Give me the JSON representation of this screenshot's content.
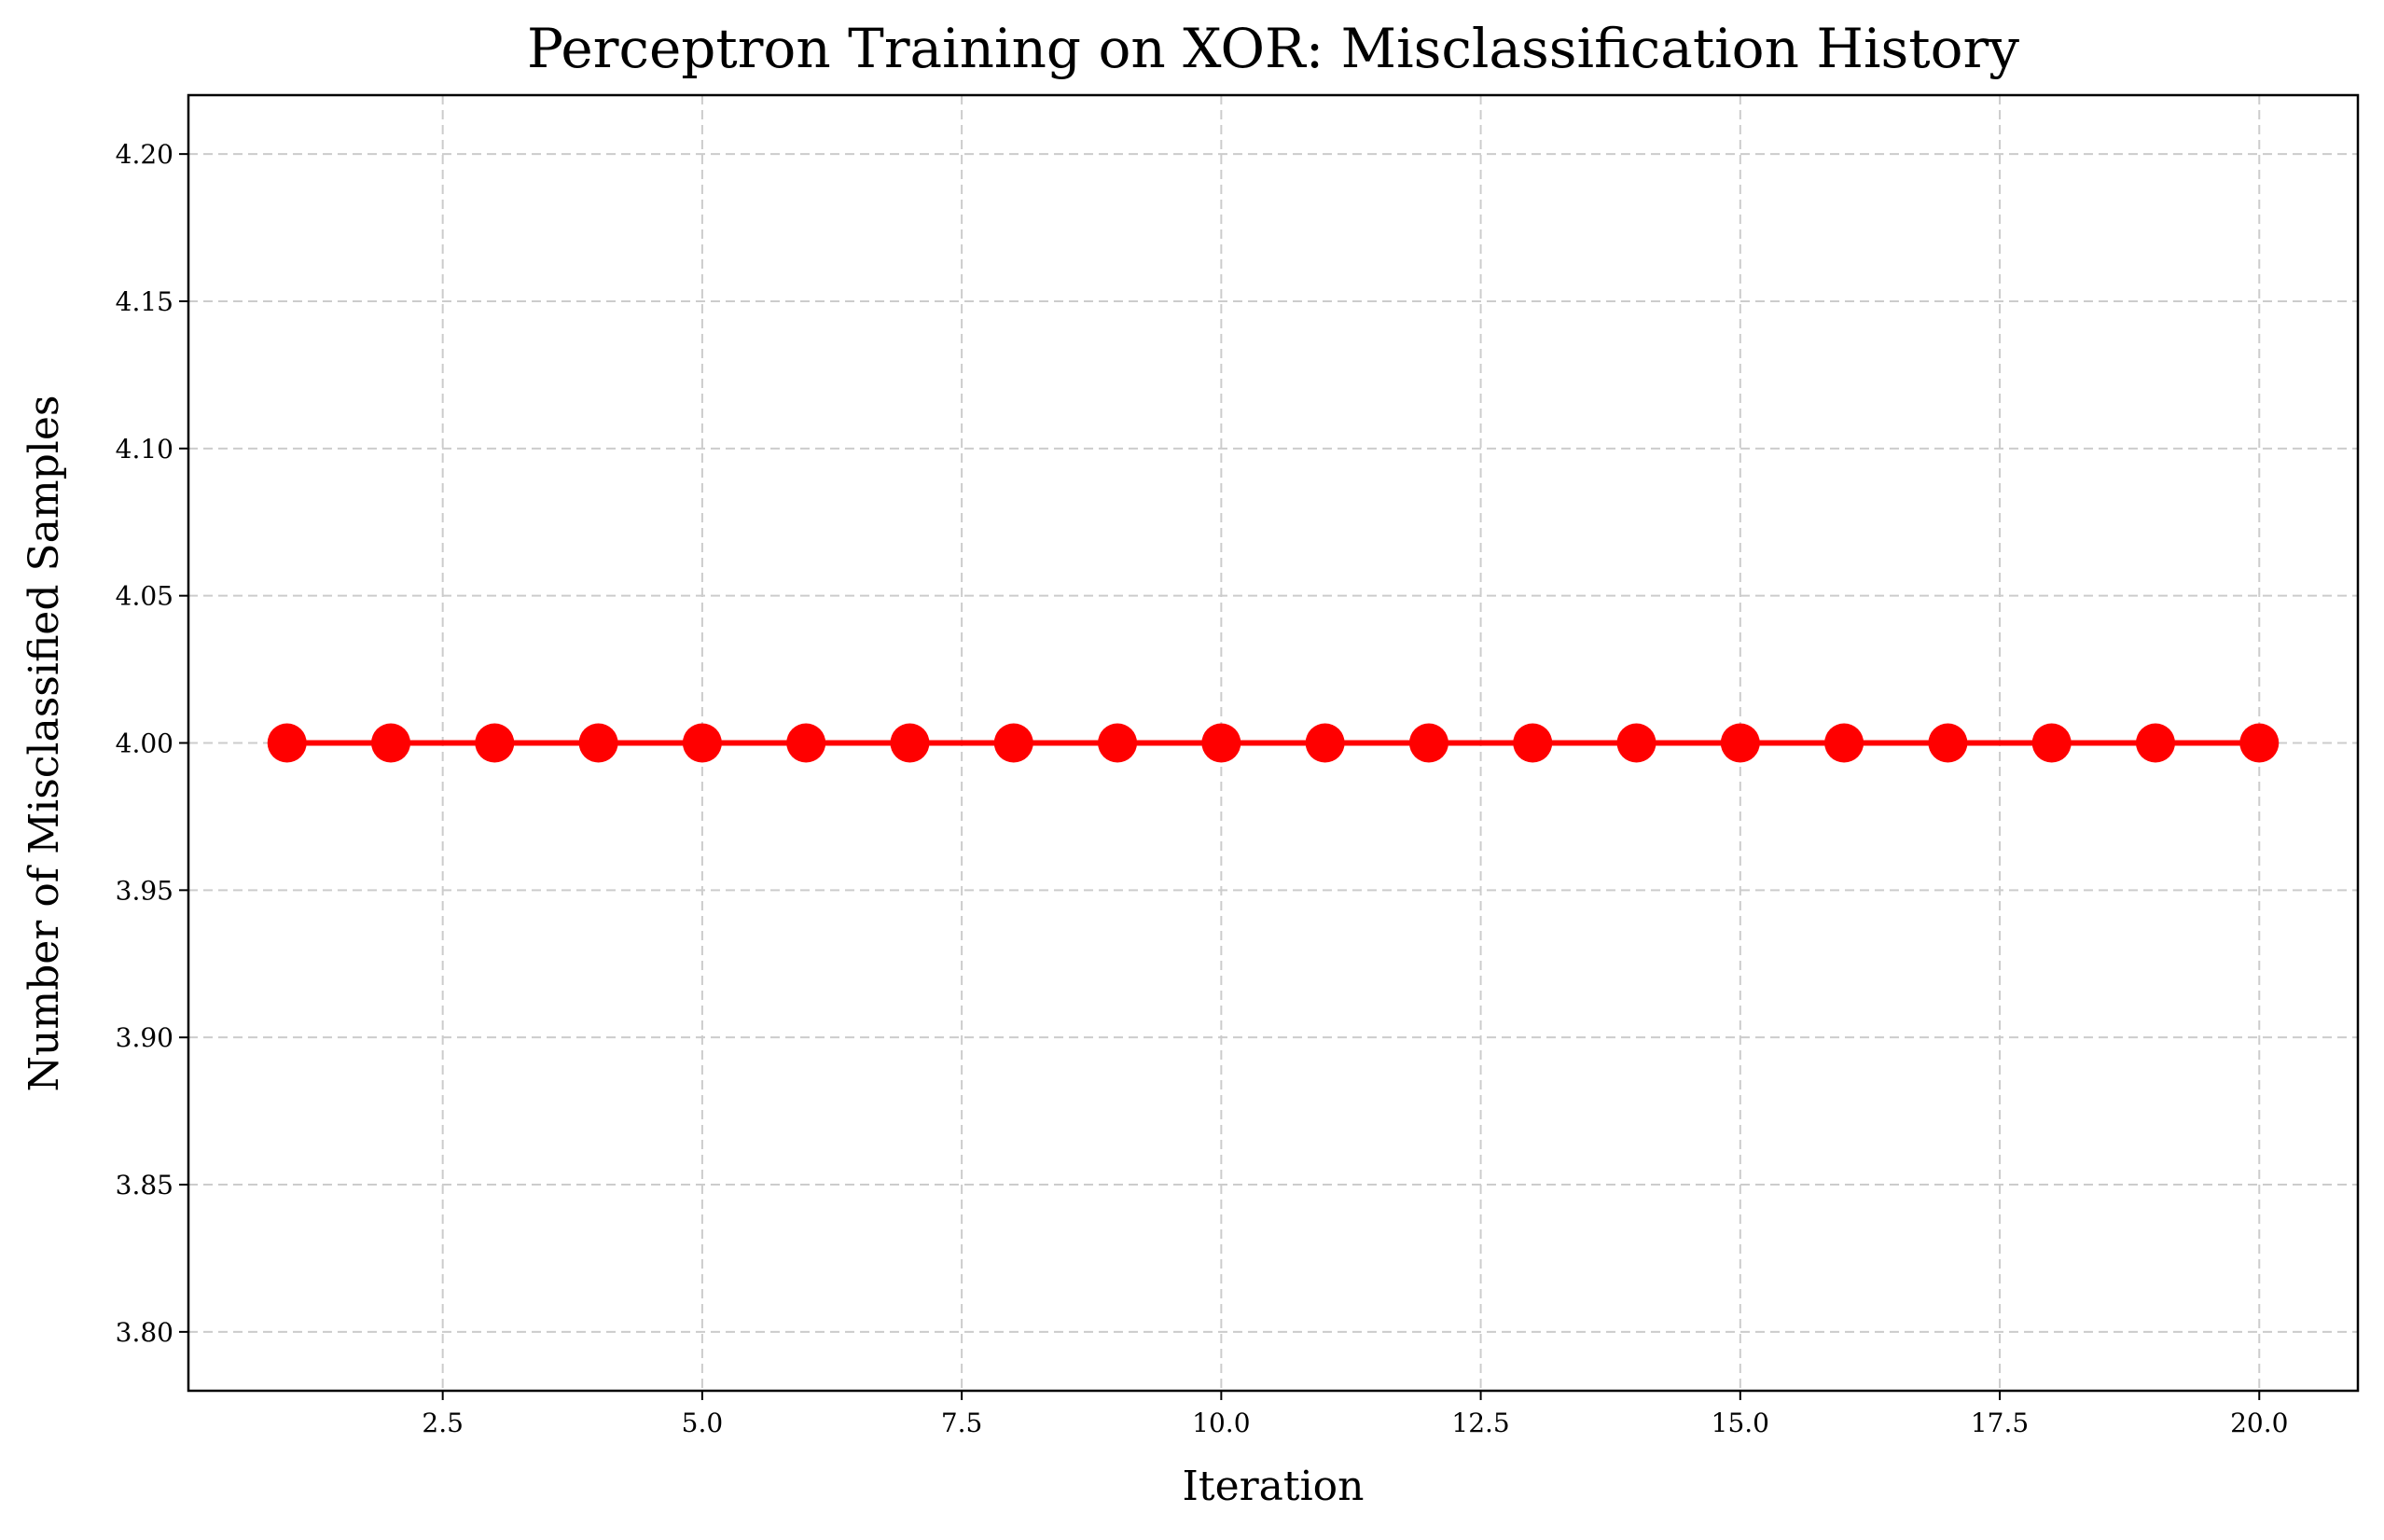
{
  "chart_data": {
    "type": "line",
    "title": "Perceptron Training on XOR: Misclassification History",
    "xlabel": "Iteration",
    "ylabel": "Number of Misclassified Samples",
    "xlim": [
      0.05,
      20.95
    ],
    "ylim": [
      3.78,
      4.22
    ],
    "xticks": [
      2.5,
      5.0,
      7.5,
      10.0,
      12.5,
      15.0,
      17.5,
      20.0
    ],
    "xtick_labels": [
      "2.5",
      "5.0",
      "7.5",
      "10.0",
      "12.5",
      "15.0",
      "17.5",
      "20.0"
    ],
    "yticks": [
      3.8,
      3.85,
      3.9,
      3.95,
      4.0,
      4.05,
      4.1,
      4.15,
      4.2
    ],
    "ytick_labels": [
      "3.80",
      "3.85",
      "3.90",
      "3.95",
      "4.00",
      "4.05",
      "4.10",
      "4.15",
      "4.20"
    ],
    "grid": true,
    "series": [
      {
        "color": "#ff0000",
        "marker": "circle",
        "x": [
          1,
          2,
          3,
          4,
          5,
          6,
          7,
          8,
          9,
          10,
          11,
          12,
          13,
          14,
          15,
          16,
          17,
          18,
          19,
          20
        ],
        "y": [
          4,
          4,
          4,
          4,
          4,
          4,
          4,
          4,
          4,
          4,
          4,
          4,
          4,
          4,
          4,
          4,
          4,
          4,
          4,
          4
        ]
      }
    ]
  }
}
